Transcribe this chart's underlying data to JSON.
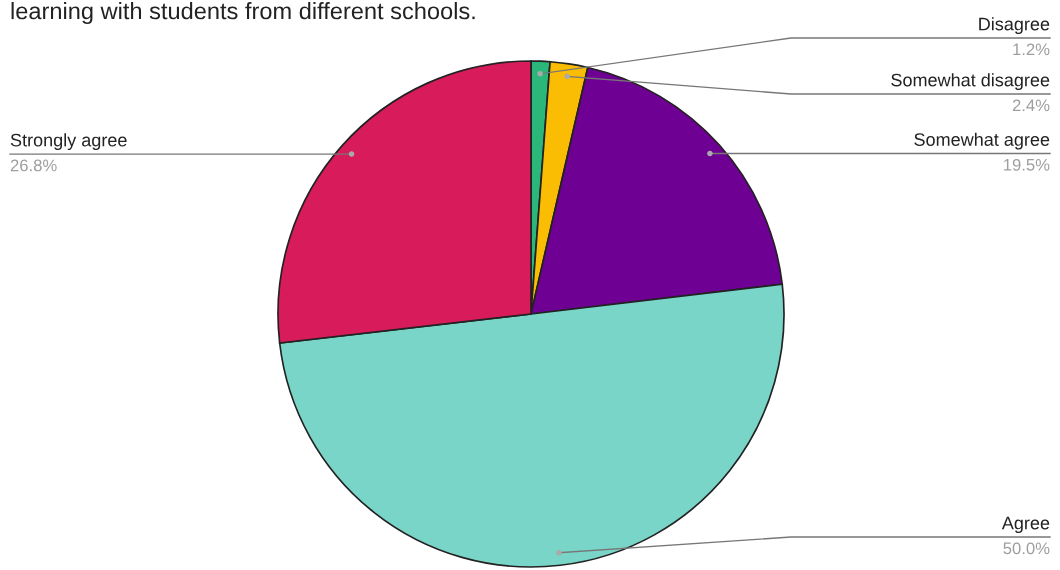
{
  "chart_data": {
    "type": "pie",
    "title": "learning with students from different schools.",
    "categories": [
      "Disagree",
      "Somewhat disagree",
      "Somewhat agree",
      "Agree",
      "Strongly agree"
    ],
    "values": [
      1.2,
      2.4,
      19.5,
      50.0,
      26.8
    ],
    "value_labels": [
      "1.2%",
      "2.4%",
      "19.5%",
      "50.0%",
      "26.8%"
    ],
    "colors": [
      "#2bb67a",
      "#fbbc04",
      "#6f0094",
      "#78d5c8",
      "#d81b5a"
    ]
  }
}
